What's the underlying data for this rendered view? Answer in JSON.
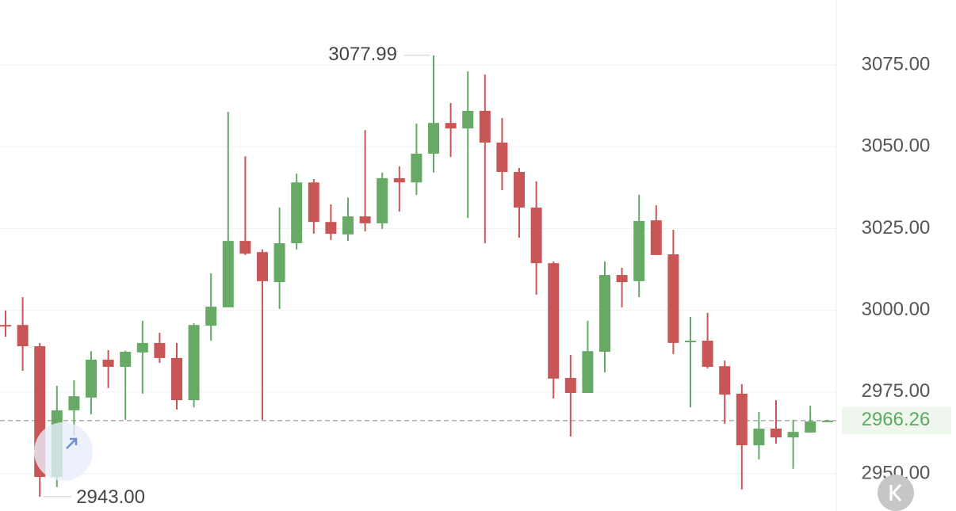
{
  "chart_data": {
    "type": "candlestick",
    "open": [
      2995.5,
      2995.5,
      2989.0,
      2949.0,
      2969.4,
      2973.3,
      2984.9,
      2982.7,
      2987.1,
      2990.0,
      2985.4,
      2972.5,
      2995.3,
      3000.9,
      3021.2,
      3017.8,
      3008.6,
      3020.5,
      3039.1,
      3027.0,
      3023.2,
      3028.7,
      3026.6,
      3040.4,
      3039.1,
      3047.9,
      3057.3,
      3055.6,
      3061.0,
      3051.3,
      3042.3,
      3031.4,
      3014.4,
      2979.3,
      2974.7,
      2987.3,
      3010.8,
      3008.9,
      3027.5,
      3017.1,
      2990.2,
      2990.7,
      2982.9,
      2974.5,
      2958.7,
      2963.8,
      2961.1,
      2962.6,
      2966.0
    ],
    "high": [
      2999.9,
      3004.0,
      2990.0,
      2976.9,
      2978.6,
      2987.5,
      2987.8,
      2987.6,
      2996.8,
      2993.1,
      2990.0,
      2996.0,
      3011.3,
      3060.7,
      3047.1,
      3018.6,
      3031.4,
      3041.8,
      3040.1,
      3032.4,
      3034.5,
      3055.1,
      3042.1,
      3044.0,
      3057.1,
      3077.99,
      3063.4,
      3073.1,
      3072.1,
      3058.8,
      3043.5,
      3039.4,
      3014.9,
      2986.3,
      2996.8,
      3014.9,
      3013.0,
      3035.3,
      3032.1,
      3024.6,
      2998.0,
      2999.2,
      2984.6,
      2977.4,
      2968.9,
      2972.5,
      2966.5,
      2970.8,
      2966.5
    ],
    "low": [
      2991.9,
      2981.5,
      2943.0,
      2945.9,
      2961.6,
      2968.2,
      2976.2,
      2966.5,
      2974.5,
      2983.9,
      2969.6,
      2970.3,
      2990.7,
      3000.9,
      3016.9,
      2966.5,
      3000.4,
      3018.6,
      3023.4,
      3021.5,
      3021.2,
      3024.1,
      3024.9,
      3030.2,
      3035.3,
      3042.1,
      3046.9,
      3028.2,
      3020.5,
      3036.7,
      3022.2,
      3004.8,
      2973.0,
      2961.4,
      2974.7,
      2981.0,
      3000.9,
      3004.0,
      3016.9,
      2986.6,
      2970.3,
      2982.2,
      2965.3,
      2945.2,
      2954.4,
      2959.2,
      2951.5,
      2962.6,
      2966.0
    ],
    "close": [
      2995.3,
      2989.0,
      2949.0,
      2969.4,
      2973.7,
      2984.9,
      2982.7,
      2987.3,
      2990.0,
      2985.4,
      2972.5,
      2995.5,
      3001.1,
      3021.2,
      3017.3,
      3008.9,
      3020.5,
      3039.1,
      3027.0,
      3023.4,
      3028.7,
      3026.6,
      3040.4,
      3039.1,
      3047.9,
      3057.3,
      3055.6,
      3061.0,
      3051.3,
      3042.3,
      3031.4,
      3014.4,
      2979.1,
      2974.7,
      2987.5,
      3010.8,
      3008.6,
      3027.3,
      3016.9,
      2990.0,
      2990.7,
      2982.7,
      2974.2,
      2958.7,
      2963.8,
      2961.1,
      2962.8,
      2966.0,
      2966.26
    ],
    "up_color": "#66aa66",
    "down_color": "#c95656",
    "ylim": [
      2938.6,
      3094.9
    ],
    "yticks": [
      {
        "value": 2950,
        "label": "2950.00"
      },
      {
        "value": 2975,
        "label": "2975.00"
      },
      {
        "value": 3000,
        "label": "3000.00"
      },
      {
        "value": 3025,
        "label": "3025.00"
      },
      {
        "value": 3050,
        "label": "3050.00"
      },
      {
        "value": 3075,
        "label": "3075.00"
      }
    ],
    "grid": true,
    "annotations": [
      {
        "value": 3077.99,
        "label": "3077.99"
      },
      {
        "value": 2943,
        "label": "2943.00"
      }
    ],
    "last_price": {
      "value": 2966.26,
      "label": "2966.26"
    }
  }
}
